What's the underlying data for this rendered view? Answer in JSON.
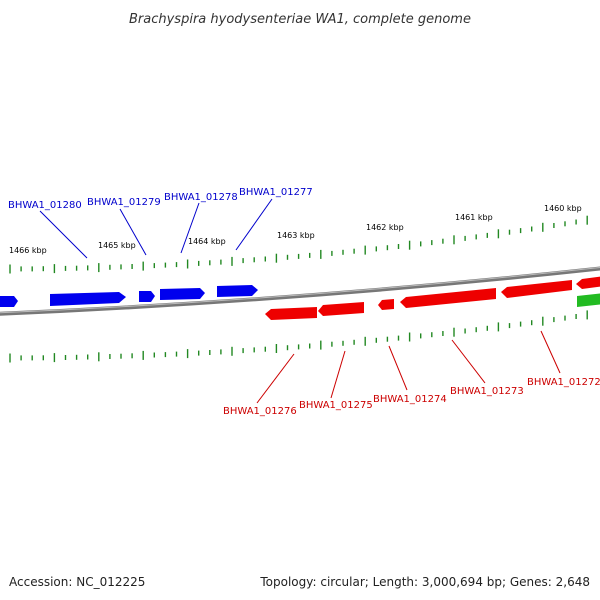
{
  "title": "Brachyspira hyodysenteriae WA1, complete genome",
  "accession": "Accession: NC_012225",
  "summary": "Topology: circular; Length: 3,000,694 bp; Genes: 2,648",
  "colors": {
    "forward": "#0000ee",
    "reverse": "#ee0000",
    "other": "#22bb22",
    "backbone": "#777777",
    "ticks": "#228822",
    "label_forward": "#0000cc",
    "label_reverse": "#cc0000"
  },
  "scale_labels": [
    "1466 kbp",
    "1465 kbp",
    "1464 kbp",
    "1463 kbp",
    "1462 kbp",
    "1461 kbp",
    "1460 kbp"
  ],
  "genes_forward": [
    "BHWA1_01280",
    "BHWA1_01279",
    "BHWA1_01278",
    "BHWA1_01277"
  ],
  "genes_reverse": [
    "BHWA1_01276",
    "BHWA1_01275",
    "BHWA1_01274",
    "BHWA1_01273",
    "BHWA1_01272"
  ]
}
